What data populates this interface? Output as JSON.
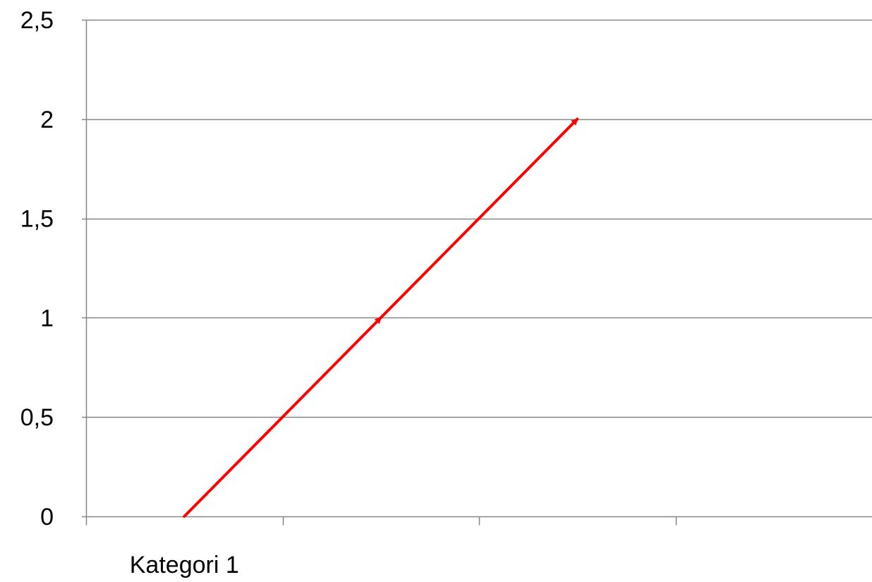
{
  "chart_data": {
    "type": "line",
    "categories": [
      "Kategori 1",
      "",
      "",
      ""
    ],
    "series": [
      {
        "points": [
          {
            "x": 0.5,
            "y": 0
          },
          {
            "x": 1.5,
            "y": 1
          },
          {
            "x": 2.5,
            "y": 2
          }
        ],
        "color": "#ff0000",
        "arrowheads": true
      }
    ],
    "ylim": [
      0,
      2.5
    ],
    "yticks": [
      0,
      0.5,
      1,
      1.5,
      2,
      2.5
    ],
    "ytick_labels": [
      "0",
      "0,5",
      "1",
      "1,5",
      "2",
      "2,5"
    ],
    "grid": "horizontal",
    "legend": "none",
    "gridline_color": "#868686",
    "axis_color": "#868686"
  }
}
